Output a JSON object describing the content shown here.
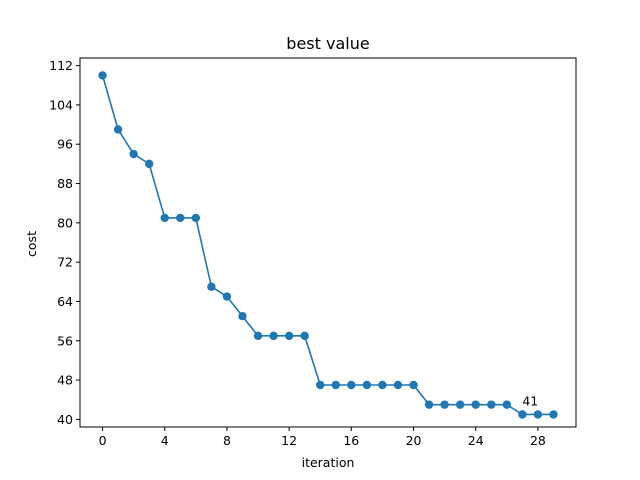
{
  "chart_data": {
    "type": "line",
    "title": "best value",
    "xlabel": "iteration",
    "ylabel": "cost",
    "x": [
      0,
      1,
      2,
      3,
      4,
      5,
      6,
      7,
      8,
      9,
      10,
      11,
      12,
      13,
      14,
      15,
      16,
      17,
      18,
      19,
      20,
      21,
      22,
      23,
      24,
      25,
      26,
      27,
      28,
      29
    ],
    "series": [
      {
        "values": [
          110,
          99,
          94,
          92,
          81,
          81,
          81,
          67,
          65,
          61,
          57,
          57,
          57,
          57,
          47,
          47,
          47,
          47,
          47,
          47,
          47,
          43,
          43,
          43,
          43,
          43,
          43,
          41,
          41,
          41
        ],
        "color": "#1f77b4",
        "marker": "circle"
      }
    ],
    "xlim": [
      -1.45,
      30.45
    ],
    "ylim": [
      38.45,
      113.55
    ],
    "xticks": [
      0,
      4,
      8,
      12,
      16,
      20,
      24,
      28
    ],
    "yticks": [
      40,
      48,
      56,
      64,
      72,
      80,
      88,
      96,
      104,
      112
    ],
    "grid": false,
    "annotations": [
      {
        "text": "41",
        "x": 27,
        "y": 41
      }
    ]
  }
}
